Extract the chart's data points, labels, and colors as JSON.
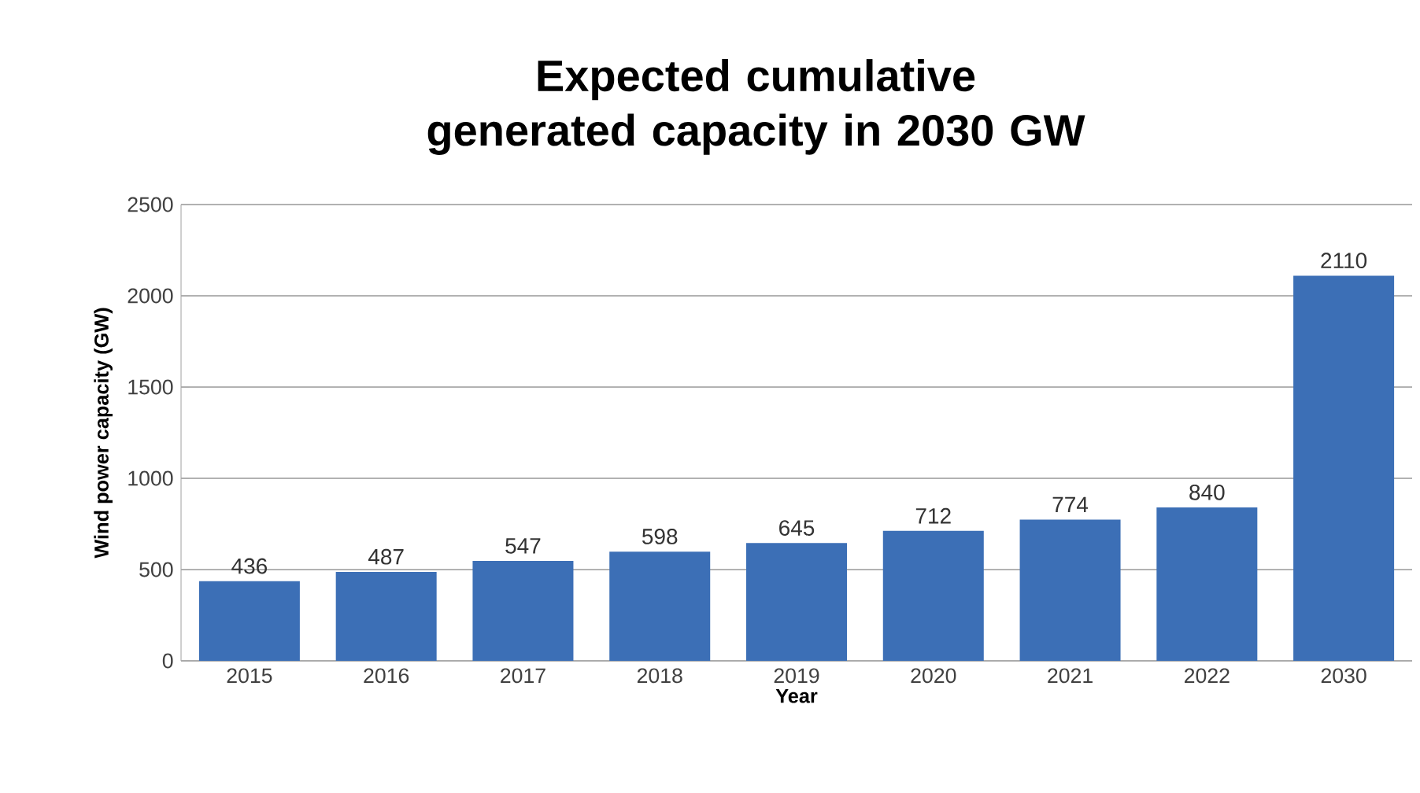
{
  "chart_data": {
    "type": "bar",
    "title": "Expected cumulative generated capacity in 2030 GW",
    "xlabel": "Year",
    "ylabel": "Wind power capacity (GW)",
    "categories": [
      "2015",
      "2016",
      "2017",
      "2018",
      "2019",
      "2020",
      "2021",
      "2022",
      "2030"
    ],
    "values": [
      436,
      487,
      547,
      598,
      645,
      712,
      774,
      840,
      2110
    ],
    "color": "#3c6fb6",
    "ylim": [
      0,
      2500
    ],
    "yticks": [
      0,
      500,
      1000,
      1500,
      2000,
      2500
    ],
    "grid": "y",
    "data_labels": true
  }
}
